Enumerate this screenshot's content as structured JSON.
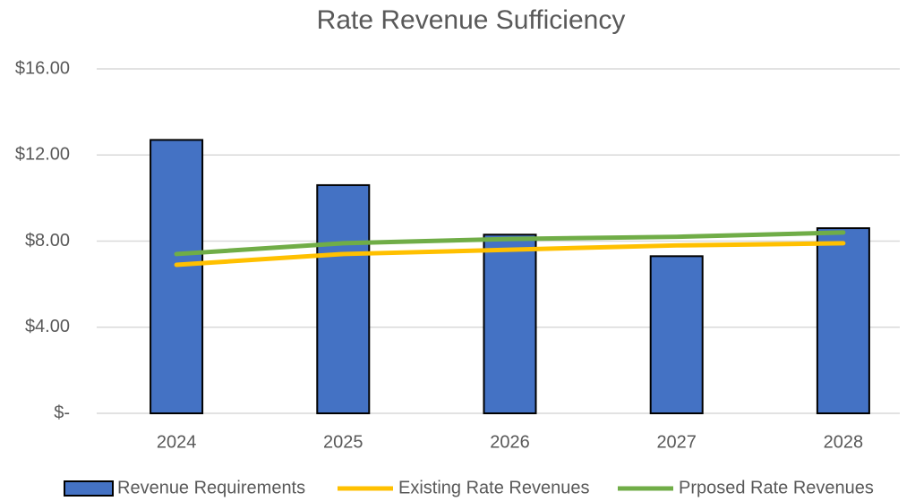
{
  "chart_data": {
    "type": "bar",
    "title": "Rate Revenue Sufficiency",
    "categories": [
      "2024",
      "2025",
      "2026",
      "2027",
      "2028"
    ],
    "series": [
      {
        "name": "Revenue Requirements",
        "type": "bar",
        "color": "#4472c4",
        "values": [
          12.7,
          10.6,
          8.3,
          7.3,
          8.6
        ]
      },
      {
        "name": "Existing Rate Revenues",
        "type": "line",
        "color": "#ffc000",
        "values": [
          6.9,
          7.4,
          7.6,
          7.8,
          7.9
        ]
      },
      {
        "name": "Prposed Rate Revenues",
        "type": "line",
        "color": "#70ad47",
        "values": [
          7.4,
          7.9,
          8.1,
          8.2,
          8.4
        ]
      }
    ],
    "ylim": [
      0,
      16
    ],
    "yticks": [
      {
        "value": 0,
        "label": "$-"
      },
      {
        "value": 4,
        "label": "$4.00"
      },
      {
        "value": 8,
        "label": "$8.00"
      },
      {
        "value": 12,
        "label": "$12.00"
      },
      {
        "value": 16,
        "label": "$16.00"
      }
    ],
    "grid": true,
    "legend": "bottom"
  }
}
